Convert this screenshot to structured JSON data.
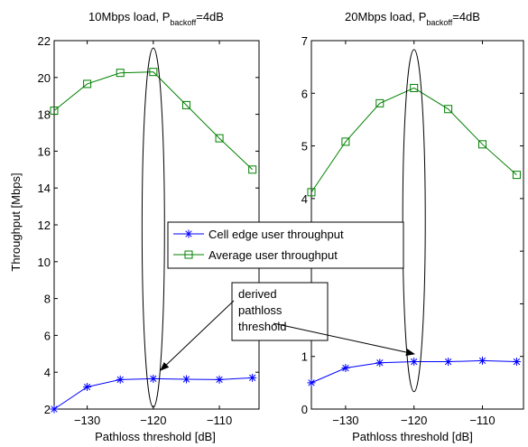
{
  "chart_data": [
    {
      "type": "line",
      "title_prefix": "10Mbps load, P",
      "title_sub": "backoff",
      "title_suffix": "=4dB",
      "xlabel": "Pathloss threshold [dB]",
      "ylabel": "Throughput [Mbps]",
      "xlim": [
        -135,
        -104
      ],
      "ylim": [
        2,
        22
      ],
      "xticks": [
        -130,
        -120,
        -110
      ],
      "yticks": [
        2,
        4,
        6,
        8,
        10,
        12,
        14,
        16,
        18,
        20,
        22
      ],
      "grid": false,
      "x": [
        -135,
        -130,
        -125,
        -120,
        -115,
        -110,
        -105
      ],
      "series": [
        {
          "name": "Cell edge user throughput",
          "marker": "asterisk",
          "color": "#0000ff",
          "values": [
            2.0,
            3.2,
            3.6,
            3.65,
            3.62,
            3.6,
            3.7
          ]
        },
        {
          "name": "Average user throughput",
          "marker": "square",
          "color": "#008000",
          "values": [
            18.2,
            19.65,
            20.25,
            20.3,
            18.5,
            16.7,
            15.0
          ]
        }
      ],
      "ellipse": {
        "cx": -120,
        "cy": 11.85,
        "rx": 1.7,
        "ry": 9.75
      }
    },
    {
      "type": "line",
      "title_prefix": "20Mbps load, P",
      "title_sub": "backoff",
      "title_suffix": "=4dB",
      "xlabel": "Pathloss threshold [dB]",
      "ylabel": "",
      "xlim": [
        -135,
        -104
      ],
      "ylim": [
        0,
        7
      ],
      "xticks": [
        -130,
        -120,
        -110
      ],
      "yticks": [
        0,
        1,
        2,
        3,
        4,
        5,
        6,
        7
      ],
      "grid": false,
      "x": [
        -135,
        -130,
        -125,
        -120,
        -115,
        -110,
        -105
      ],
      "series": [
        {
          "name": "Cell edge user throughput",
          "marker": "asterisk",
          "color": "#0000ff",
          "values": [
            0.5,
            0.78,
            0.88,
            0.9,
            0.9,
            0.92,
            0.9
          ]
        },
        {
          "name": "Average user throughput",
          "marker": "square",
          "color": "#008000",
          "values": [
            4.12,
            5.08,
            5.81,
            6.1,
            5.7,
            5.03,
            4.45
          ]
        }
      ],
      "ellipse": {
        "cx": -120,
        "cy": 3.58,
        "rx": 1.65,
        "ry": 3.25
      }
    }
  ],
  "legend": {
    "placement": "center",
    "items": [
      {
        "label": "Cell edge user throughput",
        "marker": "asterisk",
        "color": "#0000ff"
      },
      {
        "label": "Average user throughput",
        "marker": "square",
        "color": "#008000"
      }
    ]
  },
  "annotation": {
    "lines": [
      "derived",
      "pathloss",
      "threshold"
    ]
  }
}
